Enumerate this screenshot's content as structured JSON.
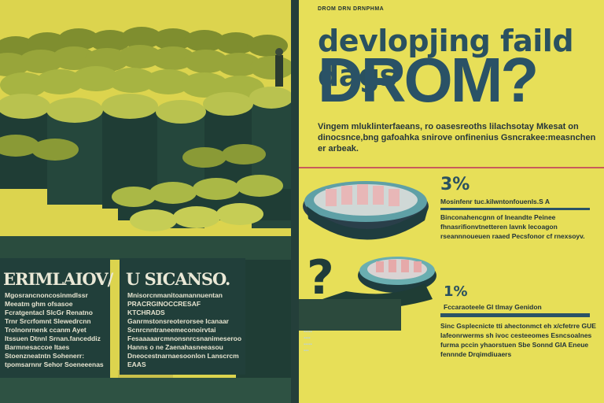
{
  "right_page": {
    "tagline": "DROM DRN DRNPHMA",
    "headline": "devlopjing faild dags",
    "bigword": "DROM?",
    "lede": "Vingem mluklinterfaeans, ro oasesreoths lilachsotay Mkesat on dinocsnce,bng gafoahka snirove onfinenius Gsncrakee:measnchen er arbeak.",
    "stat1": {
      "value": "3%",
      "heading": "Mosinfenr tuc.kilwntonfouenls.S A",
      "body": "Binconahencgnn of Ineandte Peinee fhnasrifionvtnetteren lavnk lecoagon rseannnoueuen raaed Pecsfonor cf rnexsoyv."
    },
    "stat2": {
      "value": "1%",
      "heading": "Fccaraoteele Gl tlmay Genidon",
      "body": "Sinc Gsplecnicte tti ahectonmct eh x/cfetrre GUE Iafeonrwerms sh ivoc cesteeomes Esncsoalnes furma pccin yhaorstuen Sbe Sonnd GIA Eneue fennnde Drqimdiuaers"
    },
    "qmark": "?"
  },
  "left_page": {
    "panel1": {
      "title": "ERIMLAIOV/",
      "body": "Mgosrancnoncosinmdlssr Meeatm ghm ofsasoe Fcratgentacl SlcGr Renatno Trnr Srcrfomnt Slewedrcnn Trolnonrnenk ccanm Ayet Itssuen Dtnnl Srnan.fanceddiz Barmnesaccoe Itaes Stoenzneatntn Sohenerr: tpomsarnnr Sehor Soeneeenas"
    },
    "panel2": {
      "title": "U SICANSO.",
      "body": "Mnisorcnmanitoamannuentan PRACRGINOCCRESAF KTCHRADS Ganrmstonsreoterorsee Icanaar Scnrcnntraneemeconoirvtai Fesaaaaarcmnonsnrcsnanimeseroo Hanns o ne Zaenahasneeasou Dneocestnarnaesoonlon Lanscrcm EAAS"
    }
  },
  "colors": {
    "page_yellow": "#e6dd57",
    "panel_green": "#213f3a",
    "headline_teal": "#2a5160",
    "accent_red": "#c95b5b"
  }
}
